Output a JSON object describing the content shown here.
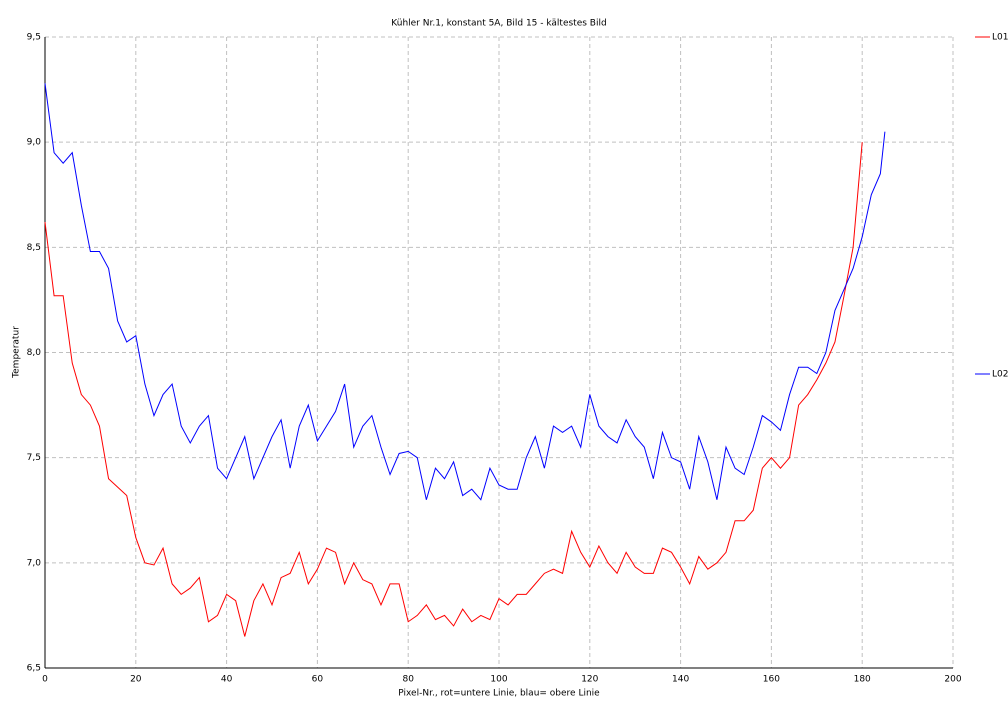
{
  "chart_data": {
    "type": "line",
    "title": "Kühler Nr.1, konstant 5A, Bild 15 - kältestes Bild",
    "x_label": "Pixel-Nr., rot=untere Linie, blau= obere Linie",
    "y_label": "Temperatur",
    "x": [
      0,
      2,
      4,
      6,
      8,
      10,
      12,
      14,
      16,
      18,
      20,
      22,
      24,
      26,
      28,
      30,
      32,
      34,
      36,
      38,
      40,
      42,
      44,
      46,
      48,
      50,
      52,
      54,
      56,
      58,
      60,
      62,
      64,
      66,
      68,
      70,
      72,
      74,
      76,
      78,
      80,
      82,
      84,
      86,
      88,
      90,
      92,
      94,
      96,
      98,
      100,
      102,
      104,
      106,
      108,
      110,
      112,
      114,
      116,
      118,
      120,
      122,
      124,
      126,
      128,
      130,
      132,
      134,
      136,
      138,
      140,
      142,
      144,
      146,
      148,
      150,
      152,
      154,
      156,
      158,
      160,
      162,
      164,
      166,
      168,
      170,
      172,
      174,
      176,
      178,
      180,
      182,
      184,
      185
    ],
    "series": [
      {
        "name": "L01",
        "color": "#ff0000",
        "values": [
          8.62,
          8.27,
          8.27,
          7.95,
          7.8,
          7.75,
          7.65,
          7.4,
          7.36,
          7.32,
          7.12,
          7.0,
          6.99,
          7.07,
          6.9,
          6.85,
          6.88,
          6.93,
          6.72,
          6.75,
          6.85,
          6.82,
          6.65,
          6.82,
          6.9,
          6.8,
          6.93,
          6.95,
          7.05,
          6.9,
          6.97,
          7.07,
          7.05,
          6.9,
          7.0,
          6.92,
          6.9,
          6.8,
          6.9,
          6.9,
          6.72,
          6.75,
          6.8,
          6.73,
          6.75,
          6.7,
          6.78,
          6.72,
          6.75,
          6.73,
          6.83,
          6.8,
          6.85,
          6.85,
          6.9,
          6.95,
          6.97,
          6.95,
          7.15,
          7.05,
          6.98,
          7.08,
          7.0,
          6.95,
          7.05,
          6.98,
          6.95,
          6.95,
          7.07,
          7.05,
          6.98,
          6.9,
          7.03,
          6.97,
          7.0,
          7.05,
          7.2,
          7.2,
          7.25,
          7.45,
          7.5,
          7.45,
          7.5,
          7.75,
          7.8,
          7.87,
          7.95,
          8.05,
          8.27,
          8.5,
          9.0,
          null,
          null,
          null
        ]
      },
      {
        "name": "L02",
        "color": "#0000ff",
        "values": [
          9.28,
          8.95,
          8.9,
          8.95,
          8.7,
          8.48,
          8.48,
          8.4,
          8.15,
          8.05,
          8.08,
          7.85,
          7.7,
          7.8,
          7.85,
          7.65,
          7.57,
          7.65,
          7.7,
          7.45,
          7.4,
          7.5,
          7.6,
          7.4,
          7.5,
          7.6,
          7.68,
          7.45,
          7.65,
          7.75,
          7.58,
          7.65,
          7.72,
          7.85,
          7.55,
          7.65,
          7.7,
          7.55,
          7.42,
          7.52,
          7.53,
          7.5,
          7.3,
          7.45,
          7.4,
          7.48,
          7.32,
          7.35,
          7.3,
          7.45,
          7.37,
          7.35,
          7.35,
          7.5,
          7.6,
          7.45,
          7.65,
          7.62,
          7.65,
          7.55,
          7.8,
          7.65,
          7.6,
          7.57,
          7.68,
          7.6,
          7.55,
          7.4,
          7.62,
          7.5,
          7.48,
          7.35,
          7.6,
          7.48,
          7.3,
          7.55,
          7.45,
          7.42,
          7.55,
          7.7,
          7.67,
          7.63,
          7.8,
          7.93,
          7.93,
          7.9,
          8.0,
          8.2,
          8.3,
          8.4,
          8.55,
          8.75,
          8.85,
          9.05
        ]
      }
    ],
    "xlim": [
      0,
      200
    ],
    "xticks": [
      0,
      20,
      40,
      60,
      80,
      100,
      120,
      140,
      160,
      180,
      200
    ],
    "ylim": [
      6.5,
      9.5
    ],
    "yticks": [
      {
        "value": 6.5,
        "label": "6,5"
      },
      {
        "value": 7,
        "label": "7,0"
      },
      {
        "value": 7.5,
        "label": "7,5"
      },
      {
        "value": 8,
        "label": "8,0"
      },
      {
        "value": 8.5,
        "label": "8,5"
      },
      {
        "value": 9,
        "label": "9,0"
      },
      {
        "value": 9.5,
        "label": "9,5"
      }
    ],
    "grid": true,
    "legend": "right"
  }
}
